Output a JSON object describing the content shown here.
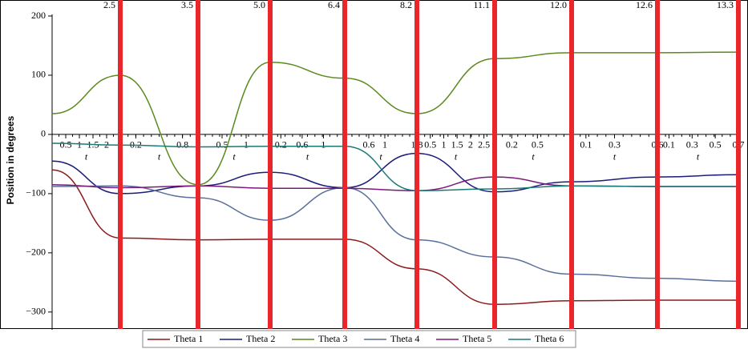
{
  "chart_data": {
    "type": "line",
    "ylabel": "Position in degrees",
    "ylim": [
      -330,
      200
    ],
    "yticks": [
      {
        "value": 200,
        "label": "200"
      },
      {
        "value": 100,
        "label": "100"
      },
      {
        "value": 0,
        "label": "0"
      },
      {
        "value": -100,
        "label": "−100"
      },
      {
        "value": -200,
        "label": "−200"
      },
      {
        "value": -300,
        "label": "−300"
      }
    ],
    "categories": [
      null,
      "2.5",
      "3.5",
      "5.0",
      "6.4",
      "8.2",
      "11.1",
      "12.0",
      "12.6",
      "13.3"
    ],
    "boundary_color": "#e8262b",
    "segments": [
      {
        "tlim": [
          0,
          2.5
        ],
        "ticks": [
          0.5,
          1,
          1.5,
          2
        ],
        "label": "t"
      },
      {
        "tlim": [
          0,
          1
        ],
        "ticks": [
          0.2,
          0.8,
          1
        ],
        "label": "t"
      },
      {
        "tlim": [
          0,
          1.5
        ],
        "ticks": [
          0.5,
          1
        ],
        "label": "t"
      },
      {
        "tlim": [
          0,
          1.4
        ],
        "ticks": [
          0.2,
          0.6,
          1
        ],
        "label": "t"
      },
      {
        "tlim": [
          0,
          1.8
        ],
        "ticks": [
          0.6,
          1,
          1.8
        ],
        "label": "t"
      },
      {
        "tlim": [
          0,
          2.9
        ],
        "ticks": [
          0.5,
          1,
          1.5,
          2,
          2.5
        ],
        "label": "t"
      },
      {
        "tlim": [
          0,
          0.9
        ],
        "ticks": [
          0.2,
          0.5
        ],
        "label": "t"
      },
      {
        "tlim": [
          0,
          0.6
        ],
        "ticks": [
          0.1,
          0.3,
          0.6
        ],
        "label": "t"
      },
      {
        "tlim": [
          0,
          0.7
        ],
        "ticks": [
          0.1,
          0.3,
          0.5,
          0.7
        ],
        "label": "t"
      }
    ],
    "series": [
      {
        "name": "Theta 1",
        "color": "#8b1a1a",
        "values": [
          -60,
          -175,
          -178,
          -177,
          -177,
          -227,
          -287,
          -281,
          -280,
          -280
        ]
      },
      {
        "name": "Theta 2",
        "color": "#1c1c7a",
        "values": [
          -45,
          -100,
          -87,
          -64,
          -90,
          -32,
          -97,
          -80,
          -72,
          -68
        ]
      },
      {
        "name": "Theta 3",
        "color": "#5b8a1d",
        "values": [
          35,
          100,
          -85,
          122,
          95,
          35,
          128,
          138,
          138,
          139
        ]
      },
      {
        "name": "Theta 4",
        "color": "#5a6f9c",
        "values": [
          -88,
          -87,
          -107,
          -145,
          -90,
          -178,
          -207,
          -236,
          -243,
          -248
        ]
      },
      {
        "name": "Theta 5",
        "color": "#7a1a7a",
        "values": [
          -85,
          -90,
          -87,
          -91,
          -91,
          -95,
          -72,
          -87,
          -88,
          -88
        ]
      },
      {
        "name": "Theta 6",
        "color": "#1a7a78",
        "values": [
          -15,
          -18,
          -21,
          -20,
          -20,
          -95,
          -92,
          -87,
          -88,
          -88
        ]
      }
    ]
  }
}
